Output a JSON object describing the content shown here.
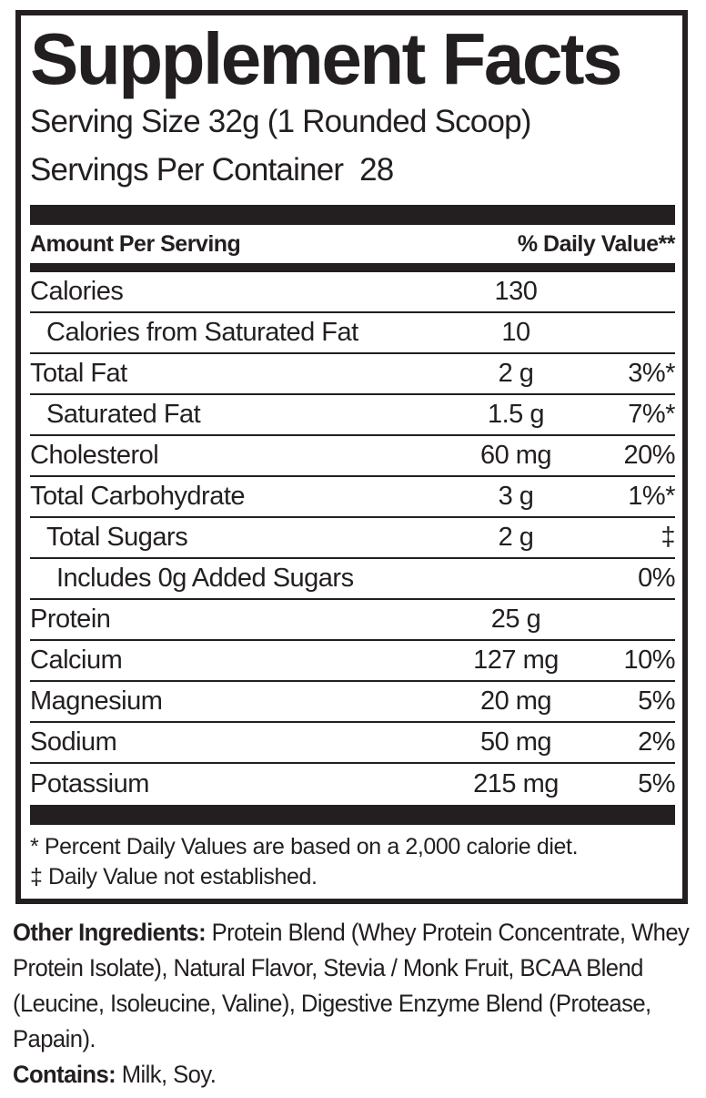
{
  "panel": {
    "title": "Supplement Facts",
    "serving_size": "Serving Size 32g (1 Rounded Scoop)",
    "servings_per_container": "Servings Per Container  28",
    "columns": {
      "left": "Amount Per Serving",
      "right": "% Daily Value**"
    },
    "rows": [
      {
        "label": "Calories",
        "amount": "130",
        "dv": "",
        "indent": 0
      },
      {
        "label": "Calories from Saturated Fat",
        "amount": "10",
        "dv": "",
        "indent": 1
      },
      {
        "label": "Total Fat",
        "amount": "2 g",
        "dv": "3%*",
        "indent": 0
      },
      {
        "label": "Saturated Fat",
        "amount": "1.5 g",
        "dv": "7%*",
        "indent": 1
      },
      {
        "label": "Cholesterol",
        "amount": "60 mg",
        "dv": "20%",
        "indent": 0
      },
      {
        "label": "Total Carbohydrate",
        "amount": "3 g",
        "dv": "1%*",
        "indent": 0
      },
      {
        "label": "Total Sugars",
        "amount": "2 g",
        "dv": "‡",
        "indent": 1
      },
      {
        "label": "Includes 0g Added Sugars",
        "amount": "",
        "dv": "0%",
        "indent": 2
      },
      {
        "label": "Protein",
        "amount": "25 g",
        "dv": "",
        "indent": 0
      },
      {
        "label": "Calcium",
        "amount": "127 mg",
        "dv": "10%",
        "indent": 0
      },
      {
        "label": "Magnesium",
        "amount": "20 mg",
        "dv": "5%",
        "indent": 0
      },
      {
        "label": "Sodium",
        "amount": "50 mg",
        "dv": "2%",
        "indent": 0
      },
      {
        "label": "Potassium",
        "amount": "215 mg",
        "dv": "5%",
        "indent": 0
      }
    ],
    "footnotes": [
      "* Percent Daily Values are based on a 2,000 calorie diet.",
      "‡ Daily Value not established."
    ]
  },
  "other_ingredients": {
    "label": "Other Ingredients:",
    "text": " Protein Blend (Whey Protein Concentrate, Whey Protein Isolate), Natural Flavor, Stevia / Monk Fruit, BCAA Blend (Leucine, Isoleucine, Valine), Digestive Enzyme Blend (Protease, Papain)."
  },
  "contains": {
    "label": "Contains:",
    "text": " Milk, Soy."
  },
  "colors": {
    "ink": "#231f20",
    "background": "#ffffff"
  }
}
